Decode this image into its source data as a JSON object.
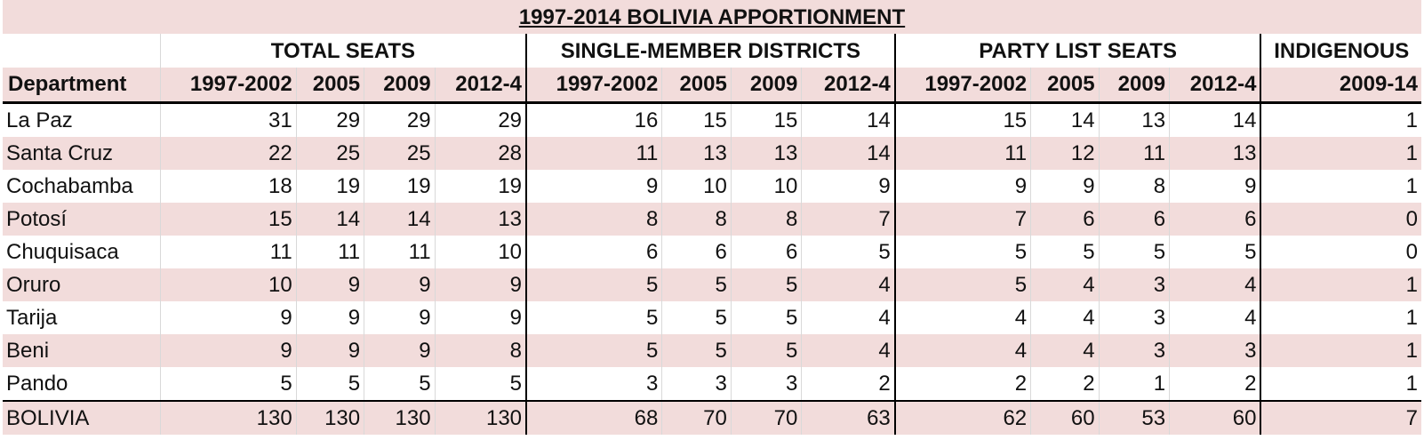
{
  "title": "1997-2014 BOLIVIA APPORTIONMENT",
  "groups": {
    "total": "TOTAL SEATS",
    "single": "SINGLE-MEMBER DISTRICTS",
    "party": "PARTY LIST SEATS",
    "indigenous": "INDIGENOUS"
  },
  "subheaders": {
    "department": "Department",
    "total": [
      "1997-2002",
      "2005",
      "2009",
      "2012-4"
    ],
    "single": [
      "1997-2002",
      "2005",
      "2009",
      "2012-4"
    ],
    "party": [
      "1997-2002",
      "2005",
      "2009",
      "2012-4"
    ],
    "indigenous": "2009-14"
  },
  "rows": [
    {
      "department": "La Paz",
      "total": [
        "31",
        "29",
        "29",
        "29"
      ],
      "single": [
        "16",
        "15",
        "15",
        "14"
      ],
      "party": [
        "15",
        "14",
        "13",
        "14"
      ],
      "indigenous": "1"
    },
    {
      "department": "Santa Cruz",
      "total": [
        "22",
        "25",
        "25",
        "28"
      ],
      "single": [
        "11",
        "13",
        "13",
        "14"
      ],
      "party": [
        "11",
        "12",
        "11",
        "13"
      ],
      "indigenous": "1"
    },
    {
      "department": "Cochabamba",
      "total": [
        "18",
        "19",
        "19",
        "19"
      ],
      "single": [
        "9",
        "10",
        "10",
        "9"
      ],
      "party": [
        "9",
        "9",
        "8",
        "9"
      ],
      "indigenous": "1"
    },
    {
      "department": "Potosí",
      "total": [
        "15",
        "14",
        "14",
        "13"
      ],
      "single": [
        "8",
        "8",
        "8",
        "7"
      ],
      "party": [
        "7",
        "6",
        "6",
        "6"
      ],
      "indigenous": "0"
    },
    {
      "department": "Chuquisaca",
      "total": [
        "11",
        "11",
        "11",
        "10"
      ],
      "single": [
        "6",
        "6",
        "6",
        "5"
      ],
      "party": [
        "5",
        "5",
        "5",
        "5"
      ],
      "indigenous": "0"
    },
    {
      "department": "Oruro",
      "total": [
        "10",
        "9",
        "9",
        "9"
      ],
      "single": [
        "5",
        "5",
        "5",
        "4"
      ],
      "party": [
        "5",
        "4",
        "3",
        "4"
      ],
      "indigenous": "1"
    },
    {
      "department": "Tarija",
      "total": [
        "9",
        "9",
        "9",
        "9"
      ],
      "single": [
        "5",
        "5",
        "5",
        "4"
      ],
      "party": [
        "4",
        "4",
        "3",
        "4"
      ],
      "indigenous": "1"
    },
    {
      "department": "Beni",
      "total": [
        "9",
        "9",
        "9",
        "8"
      ],
      "single": [
        "5",
        "5",
        "5",
        "4"
      ],
      "party": [
        "4",
        "4",
        "3",
        "3"
      ],
      "indigenous": "1"
    },
    {
      "department": "Pando",
      "total": [
        "5",
        "5",
        "5",
        "5"
      ],
      "single": [
        "3",
        "3",
        "3",
        "2"
      ],
      "party": [
        "2",
        "2",
        "1",
        "2"
      ],
      "indigenous": "1"
    }
  ],
  "totals": {
    "department": "BOLIVIA",
    "total": [
      "130",
      "130",
      "130",
      "130"
    ],
    "single": [
      "68",
      "70",
      "70",
      "63"
    ],
    "party": [
      "62",
      "60",
      "53",
      "60"
    ],
    "indigenous": "7"
  }
}
